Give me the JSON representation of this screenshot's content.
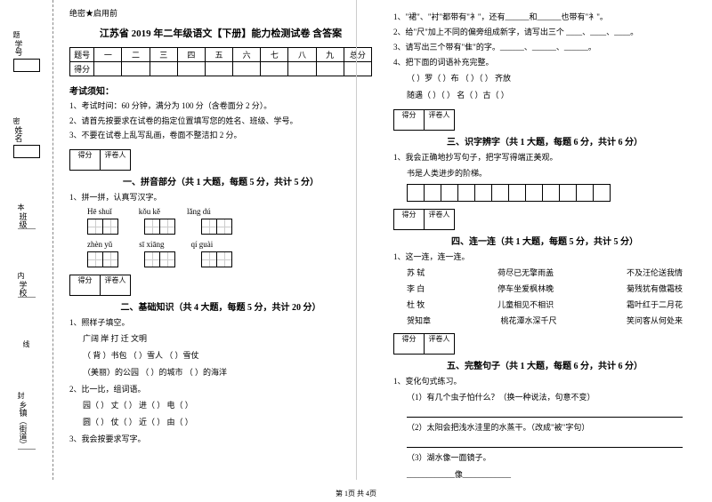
{
  "classified": "绝密★启用前",
  "title": "江苏省 2019 年二年级语文【下册】能力检测试卷 含答案",
  "gutter": {
    "labels": [
      "学号",
      "姓名",
      "班级",
      "学校",
      "乡镇（街道）"
    ],
    "marks": [
      "题",
      "密",
      "本",
      "内",
      "线",
      "封"
    ]
  },
  "scoreHeader": [
    "题号",
    "一",
    "二",
    "三",
    "四",
    "五",
    "六",
    "七",
    "八",
    "九",
    "总分"
  ],
  "scoreRow": "得分",
  "notice": {
    "head": "考试须知：",
    "items": [
      "1、考试时间：60 分钟，满分为 100 分（含卷面分 2 分）。",
      "2、请首先按要求在试卷的指定位置填写您的姓名、班级、学号。",
      "3、不要在试卷上乱写乱画，卷面不整洁扣 2 分。"
    ]
  },
  "scoreBox": {
    "a": "得分",
    "b": "评卷人"
  },
  "s1": {
    "title": "一、拼音部分（共 1 大题，每题 5 分，共计 5 分）",
    "q": "1、拼一拼，认真写汉字。",
    "row1": [
      "Hē  shuǐ",
      "kǒu  kě",
      "lǎng  dú"
    ],
    "row2": [
      "zhèn yǔ",
      "sī  xiāng",
      "qí  guài"
    ]
  },
  "s2": {
    "title": "二、基础知识（共 4 大题，每题 5 分，共计 20 分）",
    "q1": "1、照样子填空。",
    "ex": "广阔     岸     打     迁     文明",
    "ex2": "（ 背 ）书包    （      ）雪人    （      ）雪仗",
    "ex3": "（美丽）的公园  （      ）的城市  （      ）的海洋",
    "q2": "2、比一比，组词语。",
    "cmp1": "园（      ）     丈（      ）     进（      ）     电（      ）",
    "cmp2": "圆（      ）     仗（      ）     近（      ）     由（      ）",
    "q3": "3、我会按要求写字。"
  },
  "right": {
    "q1": "1、\"裙\"、\"衬\"都带有\"衤\"，还有______和______也带有\"衤\"。",
    "q2": "2、给\"尺\"加上不同的偏旁组成新字，请写出三个 ____、____、____。",
    "q3": "3、请写出三个带有\"隹\"的字。______、______、______。",
    "q4": "4、把下面的词语补充完整。",
    "q4a": "（   ）罗（   ）布     （   ）（   ） 齐放",
    "q4b": "随遇（   ）（   ）        名（   ）古（   ）",
    "s3": {
      "title": "三、识字辨字（共 1 大题，每题 6 分，共计 6 分）",
      "q": "1、我会正确地抄写句子，把字写得端正美观。",
      "line": "书是人类进步的阶梯。"
    },
    "s4": {
      "title": "四、连一连（共 1 大题，每题 5 分，共计 5 分）",
      "q": "1、这一连，连一连。",
      "rows": [
        [
          "苏 轼",
          "荷尽已无擎雨盖",
          "不及汪伦送我情"
        ],
        [
          "李 白",
          "停车坐爱枫林晚",
          "菊残犹有傲霜枝"
        ],
        [
          "杜 牧",
          "儿童相见不相识",
          "霜叶红于二月花"
        ],
        [
          "贺知章",
          "桃花潭水深千尺",
          "笑问客从何处来"
        ]
      ]
    },
    "s5": {
      "title": "五、完整句子（共 1 大题，每题 6 分，共计 6 分）",
      "q": "1、变化句式练习。",
      "a": "（1）有几个虫子怕什么？（换一种说法，句意不变）",
      "b": "（2）太阳会把浅水洼里的水蒸干。（改成\"被\"字句）",
      "c": "（3）湖水像一面镜子。",
      "d": "____________像____________"
    }
  },
  "footer": "第 1页 共 4页"
}
